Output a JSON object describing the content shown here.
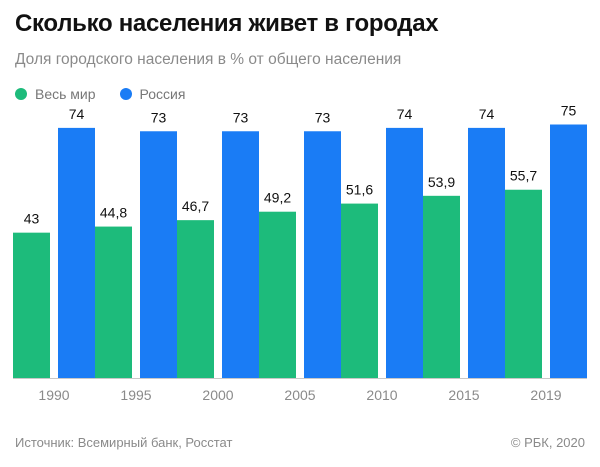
{
  "colors": {
    "world": "#1dbb7b",
    "russia": "#1a7cf5",
    "text": "#111111",
    "muted": "#8a8a8a",
    "grid": "#c8c8c8"
  },
  "legend": {
    "world_label": "Весь мир",
    "russia_label": "Россия"
  },
  "footer": {
    "source": "Источник: Всемирный банк, Росстат",
    "copyright": "© РБК, 2020"
  },
  "chart_data": {
    "type": "bar",
    "title": "Сколько населения живет в городах",
    "subtitle": "Доля городского населения в % от общего населения",
    "categories": [
      "1990",
      "1995",
      "2000",
      "2005",
      "2010",
      "2015",
      "2019"
    ],
    "series": [
      {
        "name": "Весь мир",
        "values": [
          43,
          44.8,
          46.7,
          49.2,
          51.6,
          53.9,
          55.7
        ],
        "labels": [
          "43",
          "44,8",
          "46,7",
          "49,2",
          "51,6",
          "53,9",
          "55,7"
        ]
      },
      {
        "name": "Россия",
        "values": [
          74,
          73,
          73,
          73,
          74,
          74,
          75
        ],
        "labels": [
          "74",
          "73",
          "73",
          "73",
          "74",
          "74",
          "75"
        ]
      }
    ],
    "ylim": [
      0,
      100
    ],
    "xlabel": "",
    "ylabel": ""
  }
}
